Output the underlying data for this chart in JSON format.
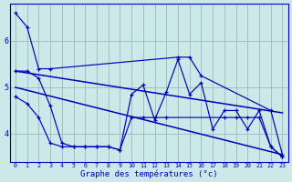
{
  "xlabel": "Graphe des températures (°c)",
  "background_color": "#cce8e8",
  "line_color": "#0000bb",
  "grid_color": "#99bbbb",
  "xlim": [
    -0.5,
    23.5
  ],
  "ylim": [
    3.4,
    6.8
  ],
  "yticks": [
    4,
    5,
    6
  ],
  "xticks": [
    0,
    1,
    2,
    3,
    4,
    5,
    6,
    7,
    8,
    9,
    10,
    11,
    12,
    13,
    14,
    15,
    16,
    17,
    18,
    19,
    20,
    21,
    22,
    23
  ],
  "series_upper": {
    "x": [
      0,
      1,
      2,
      3,
      14,
      15,
      16,
      22,
      23
    ],
    "y": [
      6.6,
      6.3,
      5.4,
      5.4,
      5.65,
      5.65,
      5.25,
      4.5,
      3.55
    ]
  },
  "series_mid": {
    "x": [
      0,
      1,
      2,
      3,
      4,
      5,
      6,
      7,
      8,
      9,
      10,
      11,
      12,
      13,
      14,
      15,
      16,
      17,
      18,
      19,
      20,
      21,
      22,
      23
    ],
    "y": [
      5.35,
      5.35,
      5.2,
      4.6,
      3.8,
      3.72,
      3.72,
      3.72,
      3.72,
      3.65,
      4.85,
      5.05,
      4.3,
      4.9,
      5.6,
      4.85,
      5.1,
      4.1,
      4.5,
      4.5,
      4.1,
      4.5,
      3.72,
      3.5
    ]
  },
  "series_lower": {
    "x": [
      0,
      1,
      2,
      3,
      4,
      5,
      6,
      7,
      8,
      9,
      10,
      11,
      12,
      13,
      18,
      19,
      20,
      21,
      22,
      23
    ],
    "y": [
      4.8,
      4.65,
      4.35,
      3.8,
      3.72,
      3.72,
      3.72,
      3.72,
      3.72,
      3.65,
      4.35,
      4.35,
      4.35,
      4.35,
      4.35,
      4.35,
      4.35,
      4.35,
      3.72,
      3.5
    ]
  },
  "series_trend1": {
    "x": [
      0,
      23
    ],
    "y": [
      5.35,
      4.45
    ]
  },
  "series_trend2": {
    "x": [
      0,
      23
    ],
    "y": [
      5.0,
      3.55
    ]
  }
}
